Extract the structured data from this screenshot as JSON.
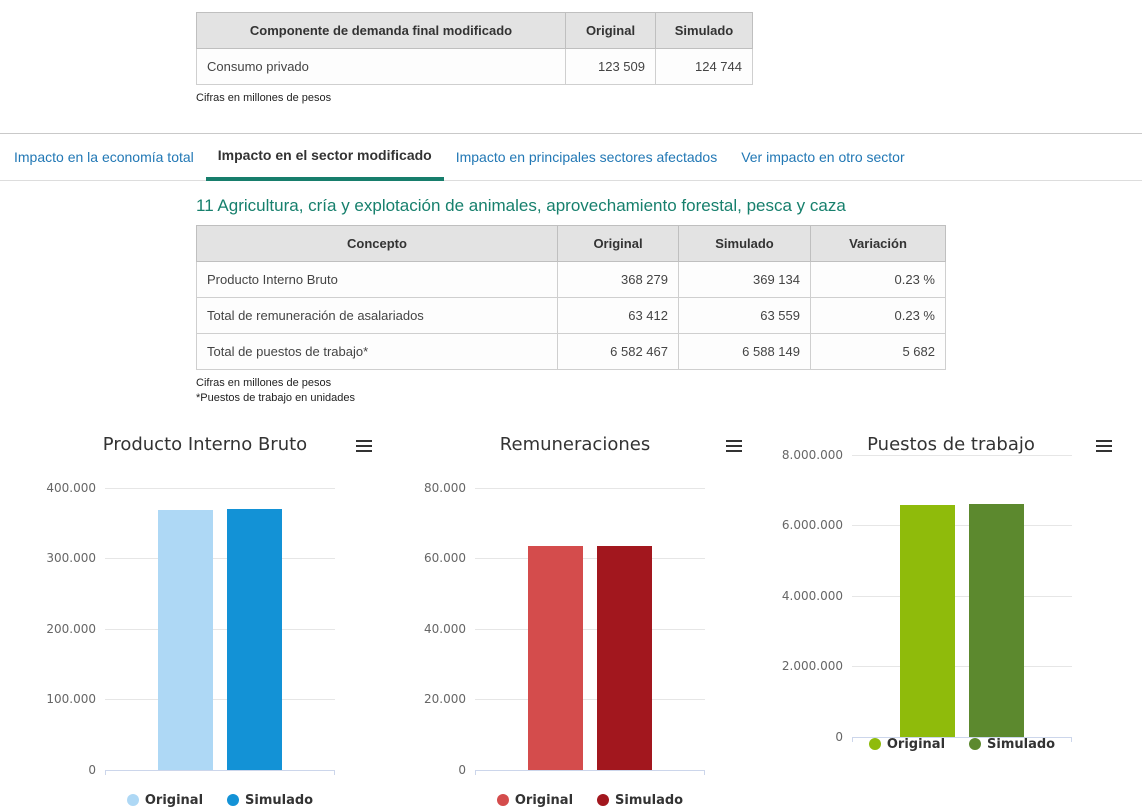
{
  "demand_table": {
    "headers": [
      "Componente de demanda final modificado",
      "Original",
      "Simulado"
    ],
    "rows": [
      {
        "label": "Consumo privado",
        "original": "123 509",
        "simulado": "124 744"
      }
    ],
    "footnote": "Cifras en millones de pesos"
  },
  "tabs": [
    {
      "label": "Impacto en la economía total",
      "active": false
    },
    {
      "label": "Impacto en el sector modificado",
      "active": true
    },
    {
      "label": "Impacto en principales sectores afectados",
      "active": false
    },
    {
      "label": "Ver impacto en otro sector",
      "active": false
    }
  ],
  "sector": {
    "title": "11 Agricultura, cría y explotación de animales, aprovechamiento forestal, pesca y caza"
  },
  "impact_table": {
    "headers": [
      "Concepto",
      "Original",
      "Simulado",
      "Variación"
    ],
    "rows": [
      {
        "concepto": "Producto Interno Bruto",
        "original": "368 279",
        "simulado": "369 134",
        "variacion": "0.23 %"
      },
      {
        "concepto": "Total de remuneración de asalariados",
        "original": "63 412",
        "simulado": "63 559",
        "variacion": "0.23 %"
      },
      {
        "concepto": "Total de puestos de trabajo*",
        "original": "6 582 467",
        "simulado": "6 588 149",
        "variacion": "5 682"
      }
    ],
    "footnotes": [
      "Cifras en millones de pesos",
      "*Puestos de trabajo en unidades"
    ]
  },
  "icons": {
    "chart_menu": "hamburger-menu-icon"
  },
  "colors": {
    "accent_teal": "#177e6c",
    "tab_link_blue": "#2278b5",
    "table_header_bg": "#e3e3e3",
    "gridline": "#e6e6e6",
    "axis_line": "#ccd6eb",
    "tick_label": "#666666",
    "legend_text": "#333333"
  },
  "chart_data": [
    {
      "type": "bar",
      "title": "Producto Interno Bruto",
      "categories": [
        ""
      ],
      "series": [
        {
          "name": "Original",
          "values": [
            368279
          ],
          "color": "#aed8f5"
        },
        {
          "name": "Simulado",
          "values": [
            369134
          ],
          "color": "#1392d6"
        }
      ],
      "ylim": [
        0,
        400000
      ],
      "yticks": [
        "400.000",
        "300.000",
        "200.000",
        "100.000",
        "0"
      ],
      "grid": true,
      "legend_position": "bottom"
    },
    {
      "type": "bar",
      "title": "Remuneraciones",
      "categories": [
        ""
      ],
      "series": [
        {
          "name": "Original",
          "values": [
            63412
          ],
          "color": "#d44c4c"
        },
        {
          "name": "Simulado",
          "values": [
            63559
          ],
          "color": "#a2171e"
        }
      ],
      "ylim": [
        0,
        80000
      ],
      "yticks": [
        "80.000",
        "60.000",
        "40.000",
        "20.000",
        "0"
      ],
      "grid": true,
      "legend_position": "bottom"
    },
    {
      "type": "bar",
      "title": "Puestos de trabajo",
      "categories": [
        ""
      ],
      "series": [
        {
          "name": "Original",
          "values": [
            6582467
          ],
          "color": "#8fbb0b"
        },
        {
          "name": "Simulado",
          "values": [
            6588149
          ],
          "color": "#5c892e"
        }
      ],
      "ylim": [
        0,
        8000000
      ],
      "yticks": [
        "8.000.000",
        "6.000.000",
        "4.000.000",
        "2.000.000",
        "0"
      ],
      "grid": true,
      "legend_position": "bottom"
    }
  ]
}
